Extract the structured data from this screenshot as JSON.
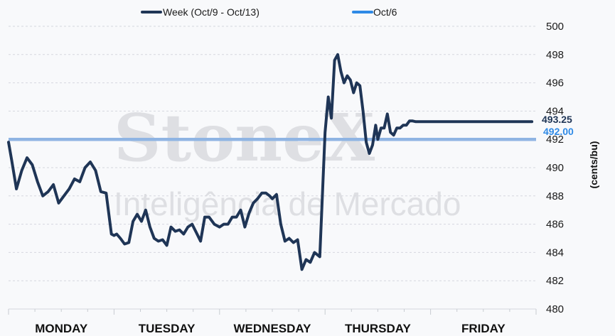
{
  "chart_data": {
    "type": "line",
    "ylabel": "(cents/bu)",
    "ylim": [
      480,
      500
    ],
    "yticks": [
      480,
      482,
      484,
      486,
      488,
      490,
      492,
      494,
      496,
      498,
      500
    ],
    "x_categories": [
      "MONDAY",
      "TUESDAY",
      "WEDNESDAY",
      "THURSDAY",
      "FRIDAY"
    ],
    "grid": true,
    "legend_position": "top",
    "watermark": {
      "line1": "StoneX",
      "line2": "Inteligência de Mercado"
    },
    "series": [
      {
        "name": "Week (Oct/9 - Oct/13)",
        "color": "#1f3556",
        "end_label": "493.25",
        "x": [
          0.0,
          0.06,
          0.15,
          0.25,
          0.35,
          0.45,
          0.55,
          0.65,
          0.75,
          0.85,
          0.95,
          1.05,
          1.15,
          1.25,
          1.35,
          1.45,
          1.55,
          1.65,
          1.75,
          1.85,
          1.95,
          2.0,
          2.05,
          2.12,
          2.2,
          2.28,
          2.36,
          2.44,
          2.52,
          2.6,
          2.68,
          2.76,
          2.84,
          2.92,
          3.0,
          3.08,
          3.16,
          3.24,
          3.32,
          3.4,
          3.48,
          3.56,
          3.64,
          3.72,
          3.8,
          3.9,
          4.0,
          4.08,
          4.16,
          4.24,
          4.32,
          4.4,
          4.48,
          4.56,
          4.64,
          4.72,
          4.8,
          4.88,
          4.95,
          5.0,
          5.08,
          5.16,
          5.24,
          5.32,
          5.4,
          5.48,
          5.56,
          5.64,
          5.72,
          5.8,
          5.9,
          6.0,
          6.06,
          6.12,
          6.18,
          6.24,
          6.3,
          6.36,
          6.42,
          6.48,
          6.54,
          6.6,
          6.66,
          6.72,
          6.78,
          6.84,
          6.9,
          6.96,
          7.0,
          7.06,
          7.12,
          7.18,
          7.24,
          7.3,
          7.36,
          7.42,
          7.48,
          7.54,
          7.6,
          7.66,
          7.72,
          7.78,
          7.84,
          7.9,
          7.96,
          8.0,
          8.08,
          8.16,
          8.24,
          8.32,
          8.4,
          8.48,
          8.56,
          8.64,
          8.72,
          8.8,
          8.88,
          8.96,
          9.04,
          9.12,
          9.2,
          9.28,
          9.36,
          9.44,
          9.52,
          9.6,
          9.68,
          9.76,
          9.84,
          9.92
        ],
        "values": [
          491.8,
          490.5,
          488.5,
          489.8,
          490.7,
          490.2,
          489.0,
          488.0,
          488.3,
          488.8,
          487.5,
          488.0,
          488.5,
          489.2,
          489.0,
          490.0,
          490.4,
          489.8,
          488.3,
          488.2,
          485.3,
          485.2,
          485.3,
          485.0,
          484.6,
          484.7,
          486.2,
          486.7,
          486.2,
          487.0,
          485.8,
          485.0,
          484.8,
          484.9,
          484.5,
          485.8,
          485.5,
          485.6,
          485.3,
          485.8,
          486.0,
          485.4,
          484.8,
          486.5,
          486.5,
          486.0,
          485.8,
          486.0,
          486.0,
          486.5,
          486.5,
          487.0,
          485.8,
          486.8,
          487.5,
          487.8,
          488.2,
          488.2,
          488.0,
          487.8,
          488.1,
          486.0,
          484.8,
          485.0,
          484.7,
          484.9,
          482.8,
          483.5,
          483.3,
          484.0,
          483.7,
          492.5,
          495.0,
          493.5,
          497.6,
          498.0,
          496.8,
          496.0,
          496.5,
          496.2,
          495.3,
          496.0,
          495.8,
          494.0,
          491.8,
          491.0,
          491.6,
          493.0,
          492.0,
          492.8,
          492.8,
          493.8,
          492.5,
          492.3,
          492.8,
          492.8,
          493.0,
          493.0,
          493.3,
          493.3,
          493.25,
          493.25,
          493.25,
          493.25,
          493.25,
          493.25,
          493.25,
          493.25,
          493.25,
          493.25,
          493.25,
          493.25,
          493.25,
          493.25,
          493.25,
          493.25,
          493.25,
          493.25,
          493.25,
          493.25,
          493.25,
          493.25,
          493.25,
          493.25,
          493.25,
          493.25,
          493.25,
          493.25,
          493.25,
          493.25
        ]
      },
      {
        "name": "Oct/6",
        "color": "#2f8ae6",
        "end_label": "492.00",
        "values": [
          492,
          492
        ]
      }
    ]
  }
}
